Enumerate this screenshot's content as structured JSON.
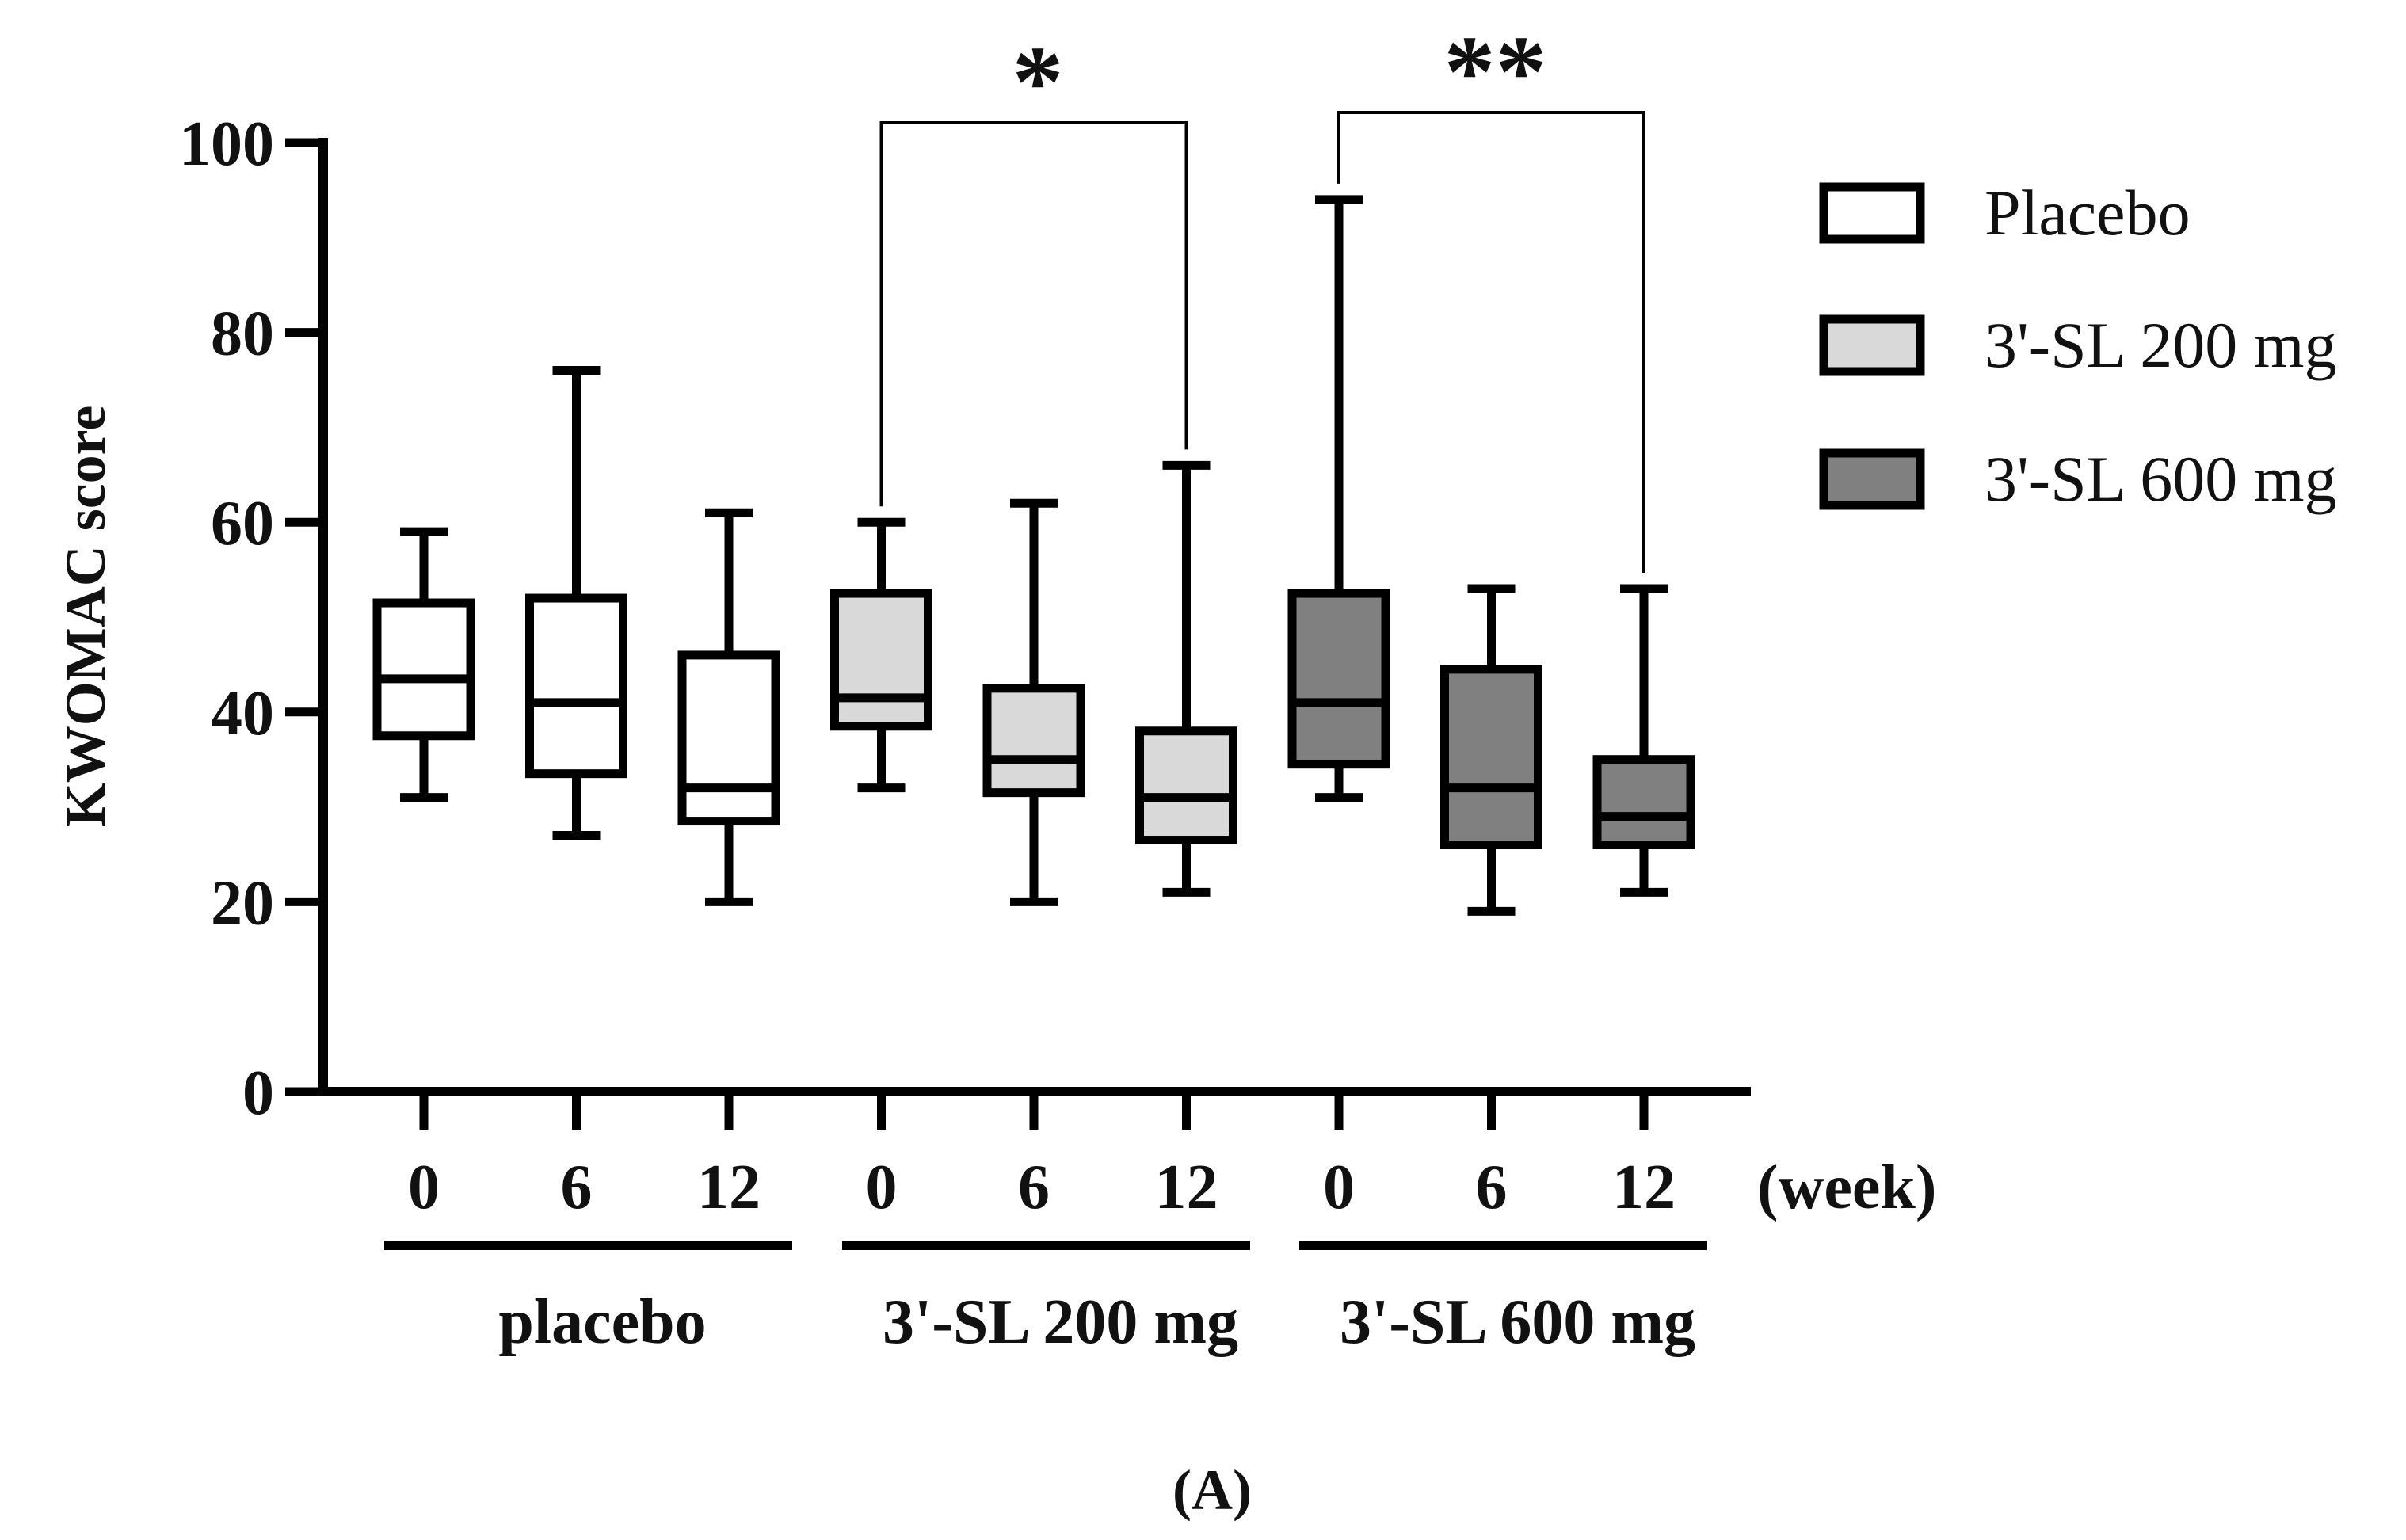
{
  "chart_data": {
    "type": "box",
    "ylabel": "KWOMAC score",
    "ylim": [
      0,
      100
    ],
    "yticks": [
      0,
      20,
      40,
      60,
      80,
      100
    ],
    "x_unit_label": "(week)",
    "panel_label": "(A)",
    "colors": {
      "Placebo": "#ffffff",
      "3'-SL 200 mg": "#d9d9d9",
      "3'-SL 600 mg": "#808080",
      "axis": "#000000"
    },
    "legend": {
      "placement": "right",
      "entries": [
        "Placebo",
        "3'-SL 200 mg",
        "3'-SL 600 mg"
      ]
    },
    "groups": [
      {
        "name": "placebo",
        "series": "Placebo",
        "boxes": [
          {
            "week": "0",
            "min": 31,
            "q1": 37.5,
            "median": 43.5,
            "q3": 51.5,
            "max": 59
          },
          {
            "week": "6",
            "min": 27,
            "q1": 33.5,
            "median": 41,
            "q3": 52,
            "max": 76
          },
          {
            "week": "12",
            "min": 20,
            "q1": 28.5,
            "median": 32,
            "q3": 46,
            "max": 61
          }
        ]
      },
      {
        "name": "3'-SL 200 mg",
        "series": "3'-SL 200 mg",
        "boxes": [
          {
            "week": "0",
            "min": 32,
            "q1": 38.5,
            "median": 41.5,
            "q3": 52.5,
            "max": 60
          },
          {
            "week": "6",
            "min": 20,
            "q1": 31.5,
            "median": 35,
            "q3": 42.5,
            "max": 62
          },
          {
            "week": "12",
            "min": 21,
            "q1": 26.5,
            "median": 31,
            "q3": 38,
            "max": 66
          }
        ]
      },
      {
        "name": "3'-SL 600 mg",
        "series": "3'-SL 600 mg",
        "boxes": [
          {
            "week": "0",
            "min": 31,
            "q1": 34.5,
            "median": 41,
            "q3": 52.5,
            "max": 94
          },
          {
            "week": "6",
            "min": 19,
            "q1": 26,
            "median": 32,
            "q3": 44.5,
            "max": 53
          },
          {
            "week": "12",
            "min": 21,
            "q1": 26,
            "median": 29,
            "q3": 35,
            "max": 53
          }
        ]
      }
    ],
    "significance": [
      {
        "group": "3'-SL 200 mg",
        "from_week": "0",
        "to_week": "12",
        "label": "*"
      },
      {
        "group": "3'-SL 600 mg",
        "from_week": "0",
        "to_week": "12",
        "label": "**"
      }
    ]
  }
}
